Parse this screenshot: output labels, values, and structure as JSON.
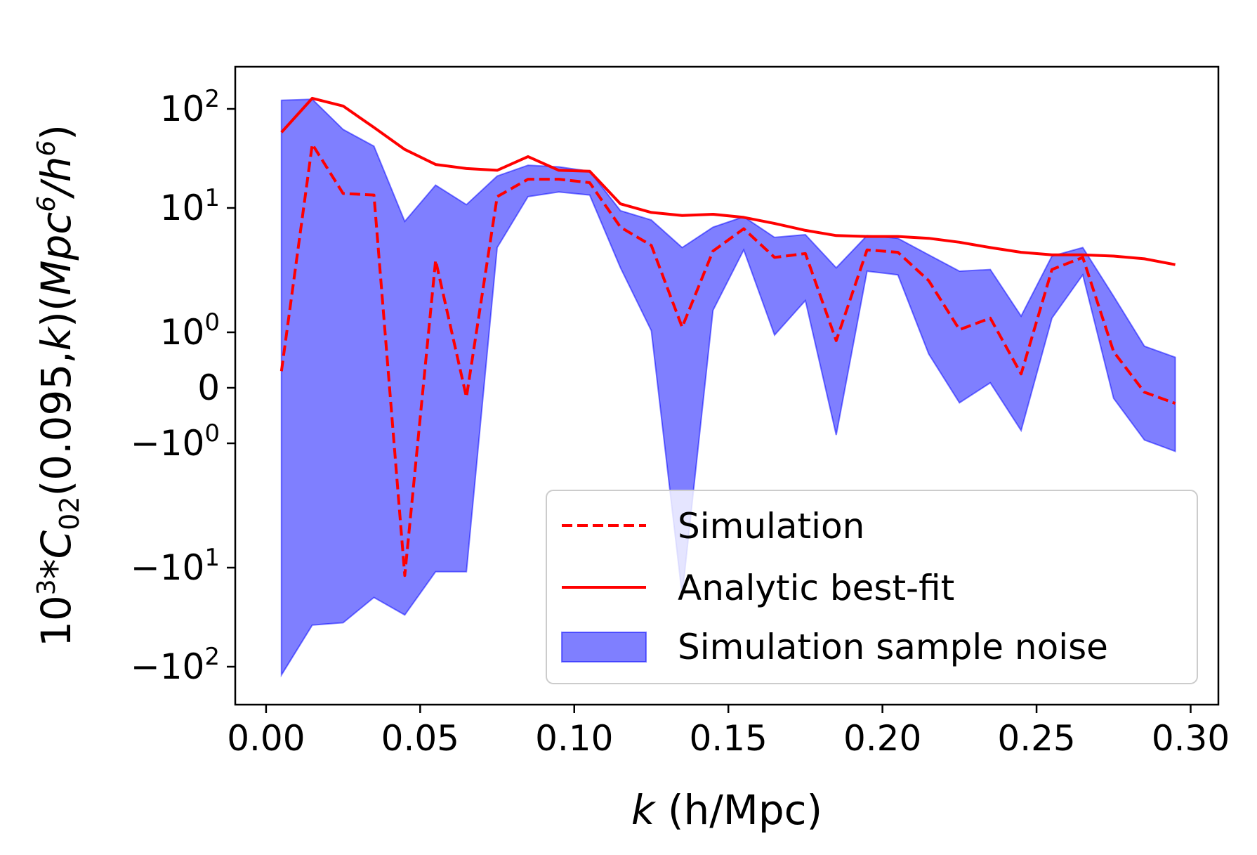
{
  "chart_data": {
    "type": "line",
    "xlabel": "k (h/Mpc)",
    "ylabel": "10^3*C_02(0.095,k)(Mpc^6/h^6)",
    "yscale": "symlog (linthresh = 1)",
    "xlim": [
      -0.01,
      0.309
    ],
    "x_ticks": [
      0.0,
      0.05,
      0.1,
      0.15,
      0.2,
      0.25,
      0.3
    ],
    "x_tick_labels": [
      "0.00",
      "0.05",
      "0.10",
      "0.15",
      "0.20",
      "0.25",
      "0.30"
    ],
    "y_ticks": [
      {
        "value": 100,
        "base": "10",
        "exp": "2",
        "neg": false
      },
      {
        "value": 10,
        "base": "10",
        "exp": "1",
        "neg": false
      },
      {
        "value": 1,
        "base": "10",
        "exp": "0",
        "neg": false
      },
      {
        "value": 0,
        "base": "0",
        "exp": "",
        "neg": false
      },
      {
        "value": -1,
        "base": "10",
        "exp": "0",
        "neg": true
      },
      {
        "value": -10,
        "base": "10",
        "exp": "1",
        "neg": true
      },
      {
        "value": -100,
        "base": "10",
        "exp": "2",
        "neg": true
      }
    ],
    "x": [
      0.005,
      0.015,
      0.025,
      0.035,
      0.045,
      0.055,
      0.065,
      0.075,
      0.085,
      0.095,
      0.105,
      0.115,
      0.125,
      0.135,
      0.145,
      0.155,
      0.165,
      0.175,
      0.185,
      0.195,
      0.205,
      0.215,
      0.225,
      0.235,
      0.245,
      0.255,
      0.265,
      0.275,
      0.285,
      0.295
    ],
    "series": [
      {
        "name": "Simulation",
        "style": "dashed",
        "color": "#ff0000",
        "values": [
          0.3,
          44,
          14,
          13.5,
          -12,
          3.8,
          -0.17,
          13,
          19.5,
          19.5,
          18,
          7,
          5,
          1.1,
          4.5,
          6.8,
          4,
          4.3,
          0.85,
          4.6,
          4.4,
          2.6,
          1.05,
          1.3,
          0.25,
          3.2,
          4,
          0.65,
          -0.08,
          -0.28
        ]
      },
      {
        "name": "Analytic best-fit",
        "style": "solid",
        "color": "#ff0000",
        "values": [
          58,
          128,
          107,
          65,
          39,
          27.5,
          25,
          24,
          33,
          24,
          23.5,
          11,
          9.2,
          8.7,
          8.9,
          8.4,
          7.5,
          6.6,
          6,
          5.9,
          5.9,
          5.7,
          5.3,
          4.8,
          4.4,
          4.2,
          4.2,
          4.1,
          3.9,
          3.5
        ]
      }
    ],
    "band": {
      "name": "Simulation sample noise",
      "color": "#0000ff",
      "alpha": 0.5,
      "lower": [
        -121,
        -38,
        -36,
        -20,
        -30,
        -11,
        -11,
        4.8,
        13,
        14.5,
        13.5,
        3.3,
        1.03,
        -19,
        1.5,
        4.6,
        0.95,
        1.8,
        -0.85,
        3.1,
        2.9,
        0.61,
        -0.27,
        0.09,
        -0.77,
        1.3,
        2.9,
        -0.19,
        -0.94,
        -1.16
      ],
      "upper": [
        122,
        125,
        62,
        42,
        7.8,
        17,
        10.8,
        21,
        27,
        26,
        23.5,
        9.5,
        8,
        4.8,
        7,
        8.5,
        5.8,
        6.1,
        3.3,
        6,
        5.7,
        4.2,
        3.1,
        3.2,
        1.35,
        4.1,
        4.8,
        1.95,
        0.75,
        0.55
      ]
    },
    "legend": {
      "position": "lower-right",
      "entries": [
        "Simulation",
        "Analytic best-fit",
        "Simulation sample noise"
      ]
    }
  }
}
